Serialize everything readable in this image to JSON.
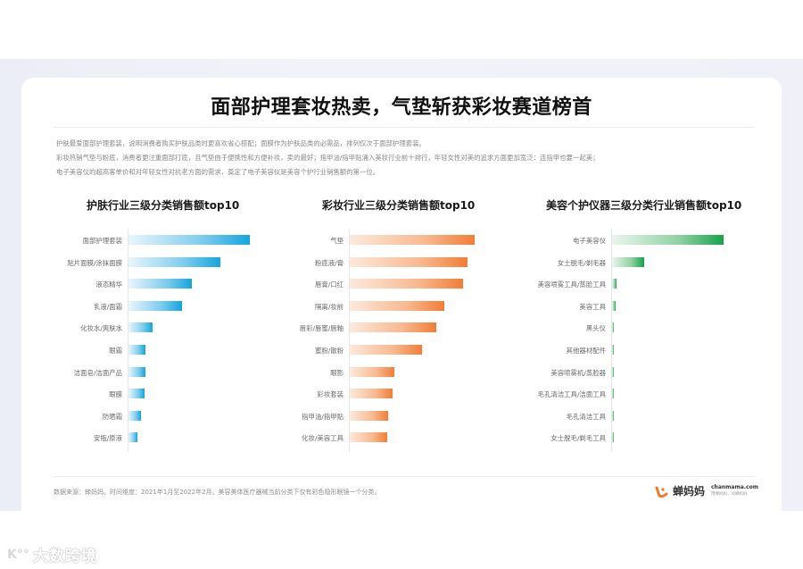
{
  "page": {
    "title": "面部护理套妆热卖，气垫斩获彩妆赛道榜首",
    "description": [
      "护肤最爱面部护理套装，说明消费者购买护肤品类时更喜欢省心搭配；面膜作为护肤品类的必需品，排列仅次于面部护理套装。",
      "彩妆热销气垫与粉底，消费者更注重面部打底，且气垫由于便携性和方便补妆，卖的最好；指甲油/指甲贴涌入美妆行业前十排行，年轻女性对美的追求方面更加宽泛：连指甲也要一起美；",
      "电子美容仪的超高客单价和对年轻女性对抗老方面的需求，奠定了电子美容仪是美容个护行业销售额的第一位。"
    ],
    "source": "数据来源：蝉妈妈。时间维度：2021年1月至2022年2月。美容美体医疗器械当前分类下仅有彩色隐形眼镜一个分类。",
    "brand": {
      "name": "蝉妈妈",
      "url": "chanmama.com",
      "slogan": "用蝉妈妈，问蝉妈妈"
    },
    "watermark": {
      "logo": "K°°",
      "text": "大数跨境"
    }
  },
  "colors": {
    "skincare": "#14a5dd",
    "makeup": "#f27d36",
    "devices": "#16a34a"
  },
  "chart_data": [
    {
      "type": "bar",
      "orientation": "horizontal",
      "title": "护肤行业三级分类销售额top10",
      "categories": [
        "面部护理套装",
        "贴片面膜/涂抹面膜",
        "液态精华",
        "乳液/面霜",
        "化妆水/爽肤水",
        "眼霜",
        "洁面皂/洁面产品",
        "眼膜",
        "防晒霜",
        "安瓶/原液"
      ],
      "values": [
        100,
        76,
        52,
        44,
        20,
        14,
        14,
        13,
        10,
        7
      ],
      "xlabel": "",
      "ylabel": "",
      "grid": false,
      "legend": "none",
      "note": "relative bar lengths, no value axis shown"
    },
    {
      "type": "bar",
      "orientation": "horizontal",
      "title": "彩妆行业三级分类销售额top10",
      "categories": [
        "气垫",
        "粉底液/膏",
        "唇膏/口红",
        "隔离/妆前",
        "唇彩/唇蜜/唇釉",
        "蜜粉/散粉",
        "眼影",
        "彩妆套装",
        "指甲油/指甲贴",
        "化妆/美容工具"
      ],
      "values": [
        100,
        94,
        91,
        76,
        69,
        58,
        36,
        34,
        31,
        30
      ],
      "xlabel": "",
      "ylabel": "",
      "grid": false,
      "legend": "none",
      "note": "relative bar lengths, no value axis shown"
    },
    {
      "type": "bar",
      "orientation": "horizontal",
      "title": "美容个护仪器三级分类行业销售额top10",
      "categories": [
        "电子美容仪",
        "女士脱毛/剃毛器",
        "美容喷雾工具/蒸脸工具",
        "美容工具",
        "黑头仪",
        "其他器材配件",
        "美容喷雾机/蒸脸器",
        "毛孔清洁工具/洁面工具",
        "毛孔清洁工具",
        "女士脱毛/剃毛工具"
      ],
      "values": [
        100,
        29,
        4,
        3,
        1,
        1,
        1,
        1,
        1,
        1
      ],
      "xlabel": "",
      "ylabel": "",
      "grid": false,
      "legend": "none",
      "note": "relative bar lengths, no value axis shown"
    }
  ]
}
